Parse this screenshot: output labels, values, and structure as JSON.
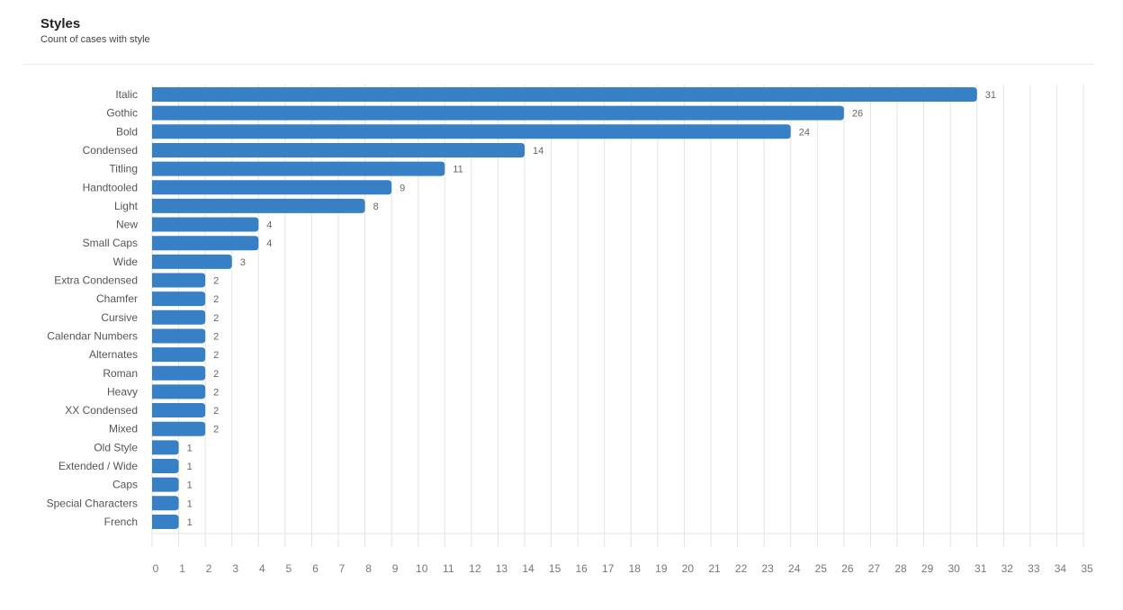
{
  "header": {
    "title": "Styles",
    "subtitle": "Count of cases with style"
  },
  "chart_data": {
    "type": "bar",
    "orientation": "horizontal",
    "title": "Styles",
    "subtitle": "Count of cases with style",
    "categories": [
      "Italic",
      "Gothic",
      "Bold",
      "Condensed",
      "Titling",
      "Handtooled",
      "Light",
      "New",
      "Small Caps",
      "Wide",
      "Extra Condensed",
      "Chamfer",
      "Cursive",
      "Calendar Numbers",
      "Alternates",
      "Roman",
      "Heavy",
      "XX Condensed",
      "Mixed",
      "Old Style",
      "Extended / Wide",
      "Caps",
      "Special Characters",
      "French"
    ],
    "values": [
      31,
      26,
      24,
      14,
      11,
      9,
      8,
      4,
      4,
      3,
      2,
      2,
      2,
      2,
      2,
      2,
      2,
      2,
      2,
      1,
      1,
      1,
      1,
      1
    ],
    "xlim": [
      0,
      35
    ],
    "xticks": [
      0,
      1,
      2,
      3,
      4,
      5,
      6,
      7,
      8,
      9,
      10,
      11,
      12,
      13,
      14,
      15,
      16,
      17,
      18,
      19,
      20,
      21,
      22,
      23,
      24,
      25,
      26,
      27,
      28,
      29,
      30,
      31,
      32,
      33,
      34,
      35
    ],
    "grid": true,
    "data_labels": true,
    "bar_color": "#3780c5"
  }
}
